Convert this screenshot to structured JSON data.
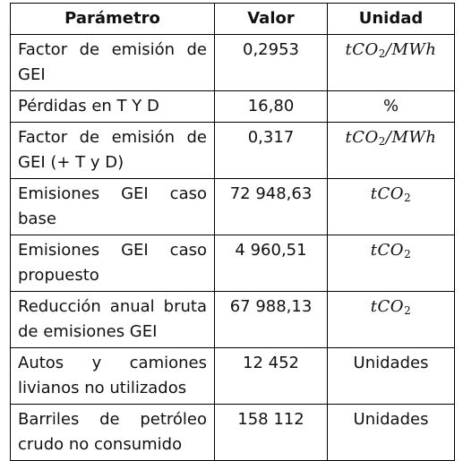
{
  "table": {
    "headers": [
      "Parámetro",
      "Valor",
      "Unidad"
    ],
    "rows": [
      {
        "param": "Factor de emisión de GEI",
        "value": "0,2953",
        "unit_main": "tCO",
        "unit_sub": "2",
        "unit_tail": "/MWh",
        "math": true
      },
      {
        "param": "Pérdidas en T Y D",
        "value": "16,80",
        "unit": "%",
        "math": false
      },
      {
        "param": "Factor de emisión de GEI (+ T y D)",
        "value": "0,317",
        "unit_main": "tCO",
        "unit_sub": "2",
        "unit_tail": "/MWh",
        "math": true
      },
      {
        "param": "Emisiones GEI caso base",
        "value": "72 948,63",
        "unit_main": "tCO",
        "unit_sub": "2",
        "unit_tail": "",
        "math": true
      },
      {
        "param": "Emisiones GEI caso propuesto",
        "value": "4 960,51",
        "unit_main": "tCO",
        "unit_sub": "2",
        "unit_tail": "",
        "math": true
      },
      {
        "param": "Reducción anual bruta de emisiones GEI",
        "value": "67 988,13",
        "unit_main": "tCO",
        "unit_sub": "2",
        "unit_tail": "",
        "math": true
      },
      {
        "param": "Autos y camiones livianos no utilizados",
        "value": "12 452",
        "unit": "Unidades",
        "math": false
      },
      {
        "param": "Barriles de petróleo crudo no consumido",
        "value": "158 112",
        "unit": "Unidades",
        "math": false
      }
    ]
  }
}
